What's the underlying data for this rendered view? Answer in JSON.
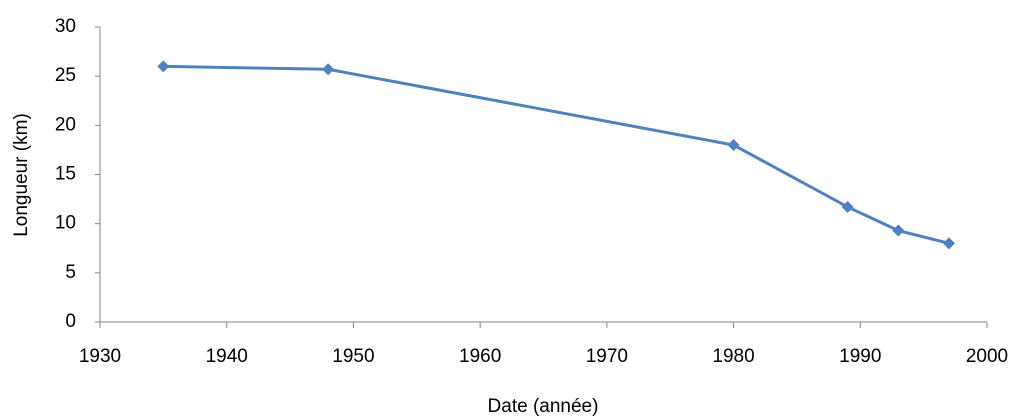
{
  "chart_data": {
    "type": "line",
    "x_label": "Date (année)",
    "y_label": "Longueur (km)",
    "x": [
      1935,
      1948,
      1980,
      1989,
      1993,
      1997
    ],
    "series": [
      {
        "name": "Longueur",
        "color": "#4f81bd",
        "values": [
          26,
          25.7,
          18,
          11.7,
          9.3,
          8
        ]
      }
    ],
    "xlim": [
      1930,
      2000
    ],
    "xticks": [
      1930,
      1940,
      1950,
      1960,
      1970,
      1980,
      1990,
      2000
    ],
    "ylim": [
      0,
      30
    ],
    "yticks": [
      0,
      5,
      10,
      15,
      20,
      25,
      30
    ],
    "grid": false,
    "legend": false
  }
}
